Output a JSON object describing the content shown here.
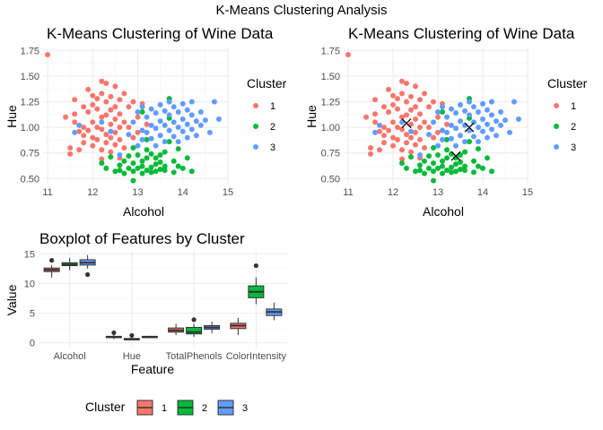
{
  "main_title": "K-Means Clustering Analysis",
  "colors": {
    "1": "#F8766D",
    "2": "#00BA38",
    "3": "#619CFF"
  },
  "chart_data": [
    {
      "type": "scatter",
      "title": "K-Means Clustering of Wine Data",
      "xlabel": "Alcohol",
      "ylabel": "Hue",
      "xlim": [
        10.9,
        15.0
      ],
      "ylim": [
        0.45,
        1.78
      ],
      "xticks": [
        "11",
        "12",
        "13",
        "14",
        "15"
      ],
      "yticks": [
        "0.50",
        "0.75",
        "1.00",
        "1.25",
        "1.50",
        "1.75"
      ],
      "legend_title": "Cluster",
      "legend": [
        "1",
        "2",
        "3"
      ],
      "legend_position": "right",
      "series": [
        {
          "name": "1",
          "points": [
            [
              11.0,
              1.71
            ],
            [
              11.4,
              1.1
            ],
            [
              11.5,
              0.8
            ],
            [
              11.5,
              0.74
            ],
            [
              11.6,
              1.27
            ],
            [
              11.6,
              1.13
            ],
            [
              11.6,
              1.05
            ],
            [
              11.7,
              0.96
            ],
            [
              11.7,
              0.78
            ],
            [
              11.8,
              1.2
            ],
            [
              11.8,
              1.0
            ],
            [
              11.8,
              0.92
            ],
            [
              11.8,
              0.85
            ],
            [
              11.9,
              1.37
            ],
            [
              11.9,
              1.15
            ],
            [
              11.9,
              0.97
            ],
            [
              12.0,
              1.31
            ],
            [
              12.0,
              1.22
            ],
            [
              12.0,
              1.05
            ],
            [
              12.0,
              0.9
            ],
            [
              12.0,
              0.82
            ],
            [
              12.1,
              1.28
            ],
            [
              12.1,
              1.18
            ],
            [
              12.1,
              1.0
            ],
            [
              12.1,
              0.88
            ],
            [
              12.2,
              1.45
            ],
            [
              12.2,
              1.33
            ],
            [
              12.2,
              1.1
            ],
            [
              12.2,
              0.98
            ],
            [
              12.2,
              0.78
            ],
            [
              12.3,
              1.43
            ],
            [
              12.3,
              1.25
            ],
            [
              12.3,
              1.12
            ],
            [
              12.3,
              0.93
            ],
            [
              12.3,
              0.85
            ],
            [
              12.4,
              1.3
            ],
            [
              12.4,
              1.17
            ],
            [
              12.4,
              1.03
            ],
            [
              12.4,
              0.9
            ],
            [
              12.4,
              0.76
            ],
            [
              12.5,
              1.4
            ],
            [
              12.5,
              1.2
            ],
            [
              12.5,
              1.08
            ],
            [
              12.5,
              0.95
            ],
            [
              12.5,
              0.83
            ],
            [
              12.6,
              1.27
            ],
            [
              12.6,
              1.13
            ],
            [
              12.6,
              1.0
            ],
            [
              12.6,
              0.88
            ],
            [
              12.7,
              1.33
            ],
            [
              12.7,
              1.05
            ],
            [
              12.7,
              0.8
            ],
            [
              12.8,
              1.2
            ],
            [
              12.8,
              1.0
            ],
            [
              12.9,
              1.25
            ],
            [
              12.9,
              0.9
            ],
            [
              13.0,
              1.1
            ],
            [
              13.0,
              0.95
            ],
            [
              13.1,
              1.23
            ],
            [
              13.2,
              1.03
            ],
            [
              12.2,
              0.69
            ],
            [
              12.6,
              0.7
            ]
          ]
        },
        {
          "name": "2",
          "points": [
            [
              12.2,
              0.65
            ],
            [
              12.3,
              0.6
            ],
            [
              12.4,
              0.71
            ],
            [
              12.5,
              0.57
            ],
            [
              12.6,
              0.63
            ],
            [
              12.7,
              0.55
            ],
            [
              12.7,
              0.67
            ],
            [
              12.8,
              0.6
            ],
            [
              12.8,
              0.72
            ],
            [
              12.9,
              0.57
            ],
            [
              12.9,
              0.65
            ],
            [
              12.9,
              0.8
            ],
            [
              12.9,
              0.48
            ],
            [
              13.0,
              0.6
            ],
            [
              13.0,
              0.73
            ],
            [
              13.1,
              0.55
            ],
            [
              13.1,
              0.67
            ],
            [
              13.1,
              0.62
            ],
            [
              13.2,
              0.58
            ],
            [
              13.2,
              0.7
            ],
            [
              13.2,
              0.78
            ],
            [
              13.2,
              0.88
            ],
            [
              13.3,
              0.61
            ],
            [
              13.3,
              0.56
            ],
            [
              13.3,
              0.74
            ],
            [
              13.4,
              0.64
            ],
            [
              13.4,
              0.57
            ],
            [
              13.4,
              0.7
            ],
            [
              13.5,
              0.59
            ],
            [
              13.5,
              0.73
            ],
            [
              13.5,
              0.66
            ],
            [
              13.6,
              0.58
            ],
            [
              13.6,
              0.62
            ],
            [
              13.6,
              0.76
            ],
            [
              13.7,
              0.86
            ],
            [
              13.7,
              1.28
            ],
            [
              13.7,
              1.09
            ],
            [
              13.8,
              0.56
            ],
            [
              13.8,
              0.67
            ],
            [
              13.9,
              0.62
            ],
            [
              13.9,
              0.79
            ],
            [
              14.0,
              0.6
            ],
            [
              14.1,
              0.7
            ],
            [
              14.2,
              0.57
            ],
            [
              13.1,
              1.15
            ],
            [
              12.6,
              0.58
            ]
          ]
        },
        {
          "name": "3",
          "points": [
            [
              11.6,
              0.95
            ],
            [
              11.7,
              1.02
            ],
            [
              12.6,
              0.73
            ],
            [
              12.8,
              0.93
            ],
            [
              12.9,
              1.05
            ],
            [
              13.0,
              1.15
            ],
            [
              13.0,
              0.82
            ],
            [
              13.1,
              1.2
            ],
            [
              13.1,
              0.97
            ],
            [
              13.1,
              0.88
            ],
            [
              13.2,
              1.1
            ],
            [
              13.2,
              0.95
            ],
            [
              13.3,
              1.18
            ],
            [
              13.3,
              1.02
            ],
            [
              13.3,
              0.89
            ],
            [
              13.4,
              1.14
            ],
            [
              13.4,
              0.99
            ],
            [
              13.4,
              0.82
            ],
            [
              13.5,
              1.22
            ],
            [
              13.5,
              1.06
            ],
            [
              13.5,
              0.92
            ],
            [
              13.6,
              1.16
            ],
            [
              13.6,
              1.02
            ],
            [
              13.6,
              0.86
            ],
            [
              13.7,
              1.25
            ],
            [
              13.7,
              1.12
            ],
            [
              13.7,
              0.97
            ],
            [
              13.8,
              1.2
            ],
            [
              13.8,
              1.05
            ],
            [
              13.8,
              0.91
            ],
            [
              13.9,
              1.15
            ],
            [
              13.9,
              1.0
            ],
            [
              13.9,
              0.86
            ],
            [
              14.0,
              1.23
            ],
            [
              14.0,
              1.08
            ],
            [
              14.0,
              0.96
            ],
            [
              14.1,
              1.17
            ],
            [
              14.1,
              1.03
            ],
            [
              14.1,
              0.9
            ],
            [
              14.2,
              1.25
            ],
            [
              14.2,
              1.12
            ],
            [
              14.2,
              0.98
            ],
            [
              14.3,
              1.06
            ],
            [
              14.3,
              0.92
            ],
            [
              14.4,
              1.15
            ],
            [
              14.4,
              1.02
            ],
            [
              14.5,
              1.07
            ],
            [
              14.8,
              1.08
            ],
            [
              14.7,
              1.25
            ],
            [
              14.6,
              0.95
            ],
            [
              12.4,
              0.96
            ],
            [
              12.2,
              1.05
            ]
          ]
        }
      ]
    },
    {
      "type": "scatter",
      "title": "K-Means Clustering of Wine Data",
      "xlabel": "Alcohol",
      "ylabel": "Hue",
      "xlim": [
        10.9,
        15.0
      ],
      "ylim": [
        0.45,
        1.78
      ],
      "xticks": [
        "11",
        "12",
        "13",
        "14",
        "15"
      ],
      "yticks": [
        "0.50",
        "0.75",
        "1.00",
        "1.25",
        "1.50",
        "1.75"
      ],
      "legend_title": "Cluster",
      "legend": [
        "1",
        "2",
        "3"
      ],
      "legend_position": "right",
      "same_points_as_first": true,
      "centers": [
        [
          12.3,
          1.04
        ],
        [
          13.7,
          1.0
        ],
        [
          13.4,
          0.72
        ]
      ]
    },
    {
      "type": "boxplot",
      "title": "Boxplot of Features by Cluster",
      "xlabel": "Feature",
      "ylabel": "Value",
      "ylim": [
        -0.8,
        15.5
      ],
      "yticks": [
        "0",
        "5",
        "10",
        "15"
      ],
      "categories": [
        "Alcohol",
        "Hue",
        "TotalPhenols",
        "ColorIntensity"
      ],
      "legend_title": "Cluster",
      "legend": [
        "1",
        "2",
        "3"
      ],
      "legend_position": "bottom",
      "series": [
        {
          "name": "1",
          "boxes": [
            {
              "min": 11.0,
              "q1": 12.0,
              "median": 12.3,
              "q3": 12.6,
              "max": 13.1,
              "outliers": [
                13.9
              ]
            },
            {
              "min": 0.6,
              "q1": 0.9,
              "median": 1.0,
              "q3": 1.1,
              "max": 1.4,
              "outliers": [
                1.7
              ]
            },
            {
              "min": 1.3,
              "q1": 1.8,
              "median": 2.1,
              "q3": 2.5,
              "max": 3.2,
              "outliers": []
            },
            {
              "min": 1.3,
              "q1": 2.4,
              "median": 2.9,
              "q3": 3.3,
              "max": 4.2,
              "outliers": []
            }
          ]
        },
        {
          "name": "2",
          "boxes": [
            {
              "min": 12.2,
              "q1": 13.0,
              "median": 13.2,
              "q3": 13.5,
              "max": 14.3,
              "outliers": []
            },
            {
              "min": 0.48,
              "q1": 0.58,
              "median": 0.65,
              "q3": 0.72,
              "max": 0.9,
              "outliers": [
                1.25
              ]
            },
            {
              "min": 1.0,
              "q1": 1.5,
              "median": 1.8,
              "q3": 2.6,
              "max": 3.2,
              "outliers": [
                3.9
              ]
            },
            {
              "min": 6.5,
              "q1": 7.6,
              "median": 8.6,
              "q3": 9.6,
              "max": 11.0,
              "outliers": [
                13.0
              ]
            }
          ]
        },
        {
          "name": "3",
          "boxes": [
            {
              "min": 12.5,
              "q1": 13.1,
              "median": 13.5,
              "q3": 14.0,
              "max": 14.8,
              "outliers": [
                11.5
              ]
            },
            {
              "min": 0.85,
              "q1": 0.95,
              "median": 1.0,
              "q3": 1.1,
              "max": 1.2,
              "outliers": []
            },
            {
              "min": 1.6,
              "q1": 2.3,
              "median": 2.6,
              "q3": 2.9,
              "max": 3.6,
              "outliers": []
            },
            {
              "min": 3.8,
              "q1": 4.6,
              "median": 5.2,
              "q3": 5.7,
              "max": 6.8,
              "outliers": []
            }
          ]
        }
      ]
    }
  ]
}
